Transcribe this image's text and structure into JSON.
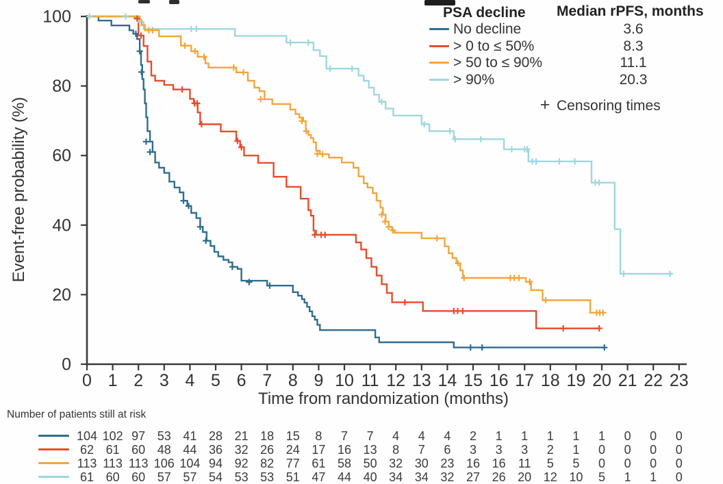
{
  "chart_data": {
    "type": "line",
    "subtype": "kaplan_meier_step_curves",
    "xlabel": "Time from randomization (months)",
    "ylabel": "Event-free probability (%)",
    "xlim": [
      0,
      23
    ],
    "ylim": [
      0,
      100
    ],
    "x_ticks": [
      0,
      1,
      2,
      3,
      4,
      5,
      6,
      7,
      8,
      9,
      10,
      11,
      12,
      13,
      14,
      15,
      16,
      17,
      18,
      19,
      20,
      21,
      22,
      23
    ],
    "y_ticks": [
      0,
      20,
      40,
      60,
      80,
      100
    ],
    "grid": false,
    "legend": {
      "position": "top-right",
      "col1_header": "PSA decline",
      "col2_header": "Median rPFS, months",
      "censoring_symbol": "+",
      "censoring_label": "Censoring times"
    },
    "series": [
      {
        "name": "No decline",
        "median_rpfs_months": "3.6",
        "color": "#2f6d8e",
        "points": [
          [
            0,
            100
          ],
          [
            0.45,
            98.8
          ],
          [
            0.95,
            97.4
          ],
          [
            1.65,
            96
          ],
          [
            1.8,
            95
          ],
          [
            1.95,
            93.5
          ],
          [
            2.05,
            90
          ],
          [
            2.1,
            86
          ],
          [
            2.15,
            82
          ],
          [
            2.2,
            79
          ],
          [
            2.25,
            75
          ],
          [
            2.3,
            71
          ],
          [
            2.35,
            67
          ],
          [
            2.45,
            64
          ],
          [
            2.55,
            61
          ],
          [
            2.65,
            58
          ],
          [
            2.8,
            56.5
          ],
          [
            3.0,
            55
          ],
          [
            3.2,
            52.5
          ],
          [
            3.4,
            50.8
          ],
          [
            3.6,
            49.4
          ],
          [
            3.75,
            47
          ],
          [
            3.9,
            45.5
          ],
          [
            4.05,
            43.5
          ],
          [
            4.25,
            42
          ],
          [
            4.4,
            39.5
          ],
          [
            4.5,
            38
          ],
          [
            4.65,
            35.5
          ],
          [
            4.8,
            34
          ],
          [
            4.95,
            32.3
          ],
          [
            5.1,
            31
          ],
          [
            5.3,
            30
          ],
          [
            5.5,
            29.3
          ],
          [
            5.65,
            28
          ],
          [
            5.85,
            27.4
          ],
          [
            6.0,
            24
          ],
          [
            7.0,
            22.6
          ],
          [
            8.0,
            20.7
          ],
          [
            8.2,
            19.7
          ],
          [
            8.35,
            18.7
          ],
          [
            8.45,
            17.7
          ],
          [
            8.55,
            16.5
          ],
          [
            8.65,
            15.2
          ],
          [
            8.75,
            13.8
          ],
          [
            8.85,
            12.8
          ],
          [
            8.95,
            11.3
          ],
          [
            9.05,
            9.8
          ],
          [
            11.2,
            7.7
          ],
          [
            11.35,
            6.3
          ],
          [
            14.25,
            4.8
          ],
          [
            20.1,
            4.8
          ]
        ],
        "censors": [
          [
            1.9,
            95
          ],
          [
            2.05,
            90
          ],
          [
            2.12,
            84
          ],
          [
            2.3,
            64
          ],
          [
            2.45,
            61
          ],
          [
            3.75,
            47
          ],
          [
            3.95,
            45.5
          ],
          [
            4.4,
            39.5
          ],
          [
            4.62,
            35.5
          ],
          [
            5.65,
            28
          ],
          [
            6.3,
            23.6
          ],
          [
            7.1,
            22.6
          ],
          [
            14.9,
            4.8
          ],
          [
            15.35,
            4.8
          ],
          [
            20.1,
            4.8
          ]
        ]
      },
      {
        "name": "> 0 to ≤ 50%",
        "median_rpfs_months": "8.3",
        "color": "#e84b2c",
        "points": [
          [
            0,
            100
          ],
          [
            1.85,
            99.4
          ],
          [
            2.0,
            94.5
          ],
          [
            2.2,
            91.5
          ],
          [
            2.35,
            87
          ],
          [
            2.5,
            83
          ],
          [
            2.65,
            81.5
          ],
          [
            3.0,
            80.3
          ],
          [
            3.35,
            79
          ],
          [
            4.0,
            76.3
          ],
          [
            4.15,
            75
          ],
          [
            4.3,
            72.4
          ],
          [
            4.4,
            69
          ],
          [
            5.2,
            66.9
          ],
          [
            5.8,
            64.2
          ],
          [
            5.95,
            62.4
          ],
          [
            6.1,
            60
          ],
          [
            6.65,
            57.9
          ],
          [
            7.25,
            53.9
          ],
          [
            7.75,
            51
          ],
          [
            8.3,
            47.6
          ],
          [
            8.6,
            44.3
          ],
          [
            8.7,
            42.7
          ],
          [
            8.8,
            38.4
          ],
          [
            8.9,
            37.2
          ],
          [
            10.45,
            35
          ],
          [
            10.65,
            33
          ],
          [
            10.85,
            30.5
          ],
          [
            11.05,
            28
          ],
          [
            11.25,
            25.5
          ],
          [
            11.45,
            23
          ],
          [
            11.65,
            20.5
          ],
          [
            11.85,
            17.8
          ],
          [
            13.05,
            15.3
          ],
          [
            17.45,
            10.3
          ],
          [
            19.9,
            10.3
          ]
        ],
        "censors": [
          [
            1.95,
            99.4
          ],
          [
            2.1,
            94.5
          ],
          [
            3.7,
            79
          ],
          [
            4.18,
            75
          ],
          [
            4.28,
            75
          ],
          [
            4.45,
            69
          ],
          [
            5.85,
            64.2
          ],
          [
            6.0,
            62.4
          ],
          [
            8.85,
            37.2
          ],
          [
            9.1,
            37.2
          ],
          [
            9.25,
            37.2
          ],
          [
            12.35,
            17.8
          ],
          [
            14.25,
            15.3
          ],
          [
            14.4,
            15.3
          ],
          [
            14.6,
            15.3
          ],
          [
            18.5,
            10.3
          ],
          [
            19.9,
            10.3
          ]
        ]
      },
      {
        "name": "> 50 to ≤ 90%",
        "median_rpfs_months": "11.1",
        "color": "#f2a63c",
        "points": [
          [
            0,
            100
          ],
          [
            2.05,
            99
          ],
          [
            2.12,
            97.5
          ],
          [
            2.25,
            96
          ],
          [
            2.8,
            94.3
          ],
          [
            3.65,
            91.6
          ],
          [
            4.05,
            90
          ],
          [
            4.3,
            88.4
          ],
          [
            4.6,
            86.5
          ],
          [
            4.72,
            85.3
          ],
          [
            5.8,
            83.9
          ],
          [
            6.25,
            81.5
          ],
          [
            6.5,
            79.5
          ],
          [
            6.7,
            78.5
          ],
          [
            6.9,
            76.2
          ],
          [
            7.2,
            74.8
          ],
          [
            7.9,
            73.2
          ],
          [
            8.1,
            71.9
          ],
          [
            8.25,
            70.9
          ],
          [
            8.4,
            69.9
          ],
          [
            8.5,
            67
          ],
          [
            8.6,
            65.9
          ],
          [
            8.7,
            65
          ],
          [
            8.8,
            63.8
          ],
          [
            8.9,
            61.4
          ],
          [
            9.05,
            60.4
          ],
          [
            9.4,
            59.4
          ],
          [
            9.9,
            58
          ],
          [
            10.35,
            56.5
          ],
          [
            10.55,
            54
          ],
          [
            10.75,
            52
          ],
          [
            10.9,
            50.8
          ],
          [
            11.1,
            49.2
          ],
          [
            11.25,
            47
          ],
          [
            11.4,
            45
          ],
          [
            11.5,
            43
          ],
          [
            11.6,
            41
          ],
          [
            11.72,
            39.5
          ],
          [
            11.85,
            38.5
          ],
          [
            11.95,
            37.8
          ],
          [
            13.0,
            36.2
          ],
          [
            13.9,
            33.9
          ],
          [
            14.05,
            31.9
          ],
          [
            14.2,
            30.5
          ],
          [
            14.35,
            29
          ],
          [
            14.5,
            27
          ],
          [
            14.6,
            24.8
          ],
          [
            17.05,
            23.7
          ],
          [
            17.25,
            21.3
          ],
          [
            17.7,
            18.4
          ],
          [
            19.55,
            14.8
          ],
          [
            20.15,
            14.8
          ]
        ],
        "censors": [
          [
            2.4,
            96
          ],
          [
            2.55,
            96
          ],
          [
            3.8,
            91.6
          ],
          [
            4.2,
            90
          ],
          [
            4.55,
            88.4
          ],
          [
            5.7,
            85.3
          ],
          [
            6.08,
            83.9
          ],
          [
            6.75,
            76.2
          ],
          [
            8.35,
            69.9
          ],
          [
            8.52,
            67
          ],
          [
            8.95,
            60.5
          ],
          [
            9.15,
            60.4
          ],
          [
            11.45,
            43
          ],
          [
            11.58,
            41
          ],
          [
            11.72,
            39.5
          ],
          [
            11.88,
            38.5
          ],
          [
            13.6,
            36.2
          ],
          [
            14.42,
            29
          ],
          [
            14.65,
            24.8
          ],
          [
            16.45,
            24.8
          ],
          [
            16.6,
            24.8
          ],
          [
            16.78,
            24.8
          ],
          [
            17.2,
            23.7
          ],
          [
            17.82,
            18.4
          ],
          [
            19.8,
            14.8
          ],
          [
            19.92,
            14.8
          ],
          [
            20.05,
            14.8
          ]
        ]
      },
      {
        "name": "> 90%",
        "median_rpfs_months": "20.3",
        "color": "#9dd8de",
        "points": [
          [
            0,
            100
          ],
          [
            2.0,
            98.4
          ],
          [
            2.2,
            96.4
          ],
          [
            5.75,
            94.4
          ],
          [
            7.75,
            92.5
          ],
          [
            8.8,
            90.3
          ],
          [
            9.05,
            88.6
          ],
          [
            9.3,
            85
          ],
          [
            10.55,
            83
          ],
          [
            10.75,
            81.5
          ],
          [
            10.95,
            79.5
          ],
          [
            11.15,
            77.5
          ],
          [
            11.35,
            75.5
          ],
          [
            11.6,
            73.5
          ],
          [
            11.9,
            71.5
          ],
          [
            13.0,
            69
          ],
          [
            13.3,
            67
          ],
          [
            14.25,
            64.7
          ],
          [
            16.2,
            61.8
          ],
          [
            17.15,
            58.3
          ],
          [
            19.6,
            52.2
          ],
          [
            20.5,
            38.8
          ],
          [
            20.72,
            26
          ],
          [
            22.7,
            26
          ]
        ],
        "censors": [
          [
            0.1,
            100
          ],
          [
            1.5,
            100
          ],
          [
            4.05,
            96.4
          ],
          [
            4.25,
            96.4
          ],
          [
            7.9,
            92.5
          ],
          [
            8.6,
            92.5
          ],
          [
            9.45,
            85
          ],
          [
            10.3,
            85
          ],
          [
            11.45,
            75.5
          ],
          [
            13.1,
            69
          ],
          [
            14.1,
            67
          ],
          [
            14.3,
            64.7
          ],
          [
            15.3,
            64.7
          ],
          [
            16.5,
            61.8
          ],
          [
            17.0,
            61.8
          ],
          [
            17.1,
            61.8
          ],
          [
            17.3,
            58.3
          ],
          [
            17.45,
            58.3
          ],
          [
            18.35,
            58.3
          ],
          [
            18.95,
            58.3
          ],
          [
            19.75,
            52.2
          ],
          [
            19.9,
            52.2
          ],
          [
            20.85,
            26
          ],
          [
            22.65,
            26
          ]
        ]
      }
    ],
    "risk_table": {
      "title": "Number of patients still at risk",
      "months": [
        0,
        1,
        2,
        3,
        4,
        5,
        6,
        7,
        8,
        9,
        10,
        11,
        12,
        13,
        14,
        15,
        16,
        17,
        18,
        19,
        20,
        21,
        22,
        23
      ],
      "rows": [
        {
          "series": "No decline",
          "color": "#2f6d8e",
          "counts": [
            104,
            102,
            97,
            53,
            41,
            28,
            21,
            18,
            15,
            8,
            7,
            7,
            4,
            4,
            4,
            2,
            1,
            1,
            1,
            1,
            1,
            0,
            0,
            0
          ]
        },
        {
          "series": "> 0 to ≤ 50%",
          "color": "#e84b2c",
          "counts": [
            62,
            61,
            60,
            48,
            44,
            36,
            32,
            26,
            24,
            17,
            16,
            13,
            8,
            7,
            6,
            3,
            3,
            3,
            2,
            1,
            0,
            0,
            0,
            0
          ]
        },
        {
          "series": "> 50 to ≤ 90%",
          "color": "#f2a63c",
          "counts": [
            113,
            113,
            113,
            106,
            104,
            94,
            92,
            82,
            77,
            61,
            58,
            50,
            32,
            30,
            23,
            16,
            16,
            11,
            5,
            5,
            0,
            0,
            0,
            0
          ]
        },
        {
          "series": "> 90%",
          "color": "#9dd8de",
          "counts": [
            61,
            60,
            60,
            57,
            57,
            54,
            53,
            53,
            51,
            47,
            44,
            40,
            34,
            34,
            32,
            27,
            26,
            20,
            12,
            10,
            5,
            1,
            1,
            0
          ]
        }
      ]
    },
    "axis_color": "#3a3a3a"
  }
}
